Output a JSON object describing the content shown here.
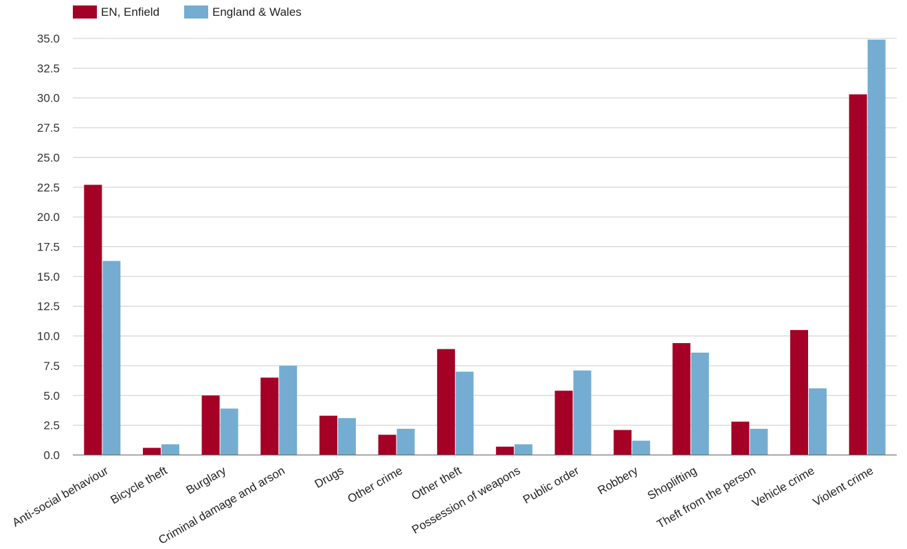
{
  "chart_data": {
    "type": "bar",
    "categories": [
      "Anti-social behaviour",
      "Bicycle theft",
      "Burglary",
      "Criminal damage and arson",
      "Drugs",
      "Other crime",
      "Other theft",
      "Possession of weapons",
      "Public order",
      "Robbery",
      "Shoplifting",
      "Theft from the person",
      "Vehicle crime",
      "Violent crime"
    ],
    "series": [
      {
        "name": "EN, Enfield",
        "color": "#a50026",
        "values": [
          22.7,
          0.6,
          5.0,
          6.5,
          3.3,
          1.7,
          8.9,
          0.7,
          5.4,
          2.1,
          9.4,
          2.8,
          10.5,
          30.3
        ]
      },
      {
        "name": "England & Wales",
        "color": "#74add1",
        "values": [
          16.3,
          0.9,
          3.9,
          7.5,
          3.1,
          2.2,
          7.0,
          0.9,
          7.1,
          1.2,
          8.6,
          2.2,
          5.6,
          34.9
        ]
      }
    ],
    "ylim": [
      0,
      35
    ],
    "yticks": [
      "0.0",
      "2.5",
      "5.0",
      "7.5",
      "10.0",
      "12.5",
      "15.0",
      "17.5",
      "20.0",
      "22.5",
      "25.0",
      "27.5",
      "30.0",
      "32.5",
      "35.0"
    ],
    "grid": true,
    "legend": "top-left"
  }
}
